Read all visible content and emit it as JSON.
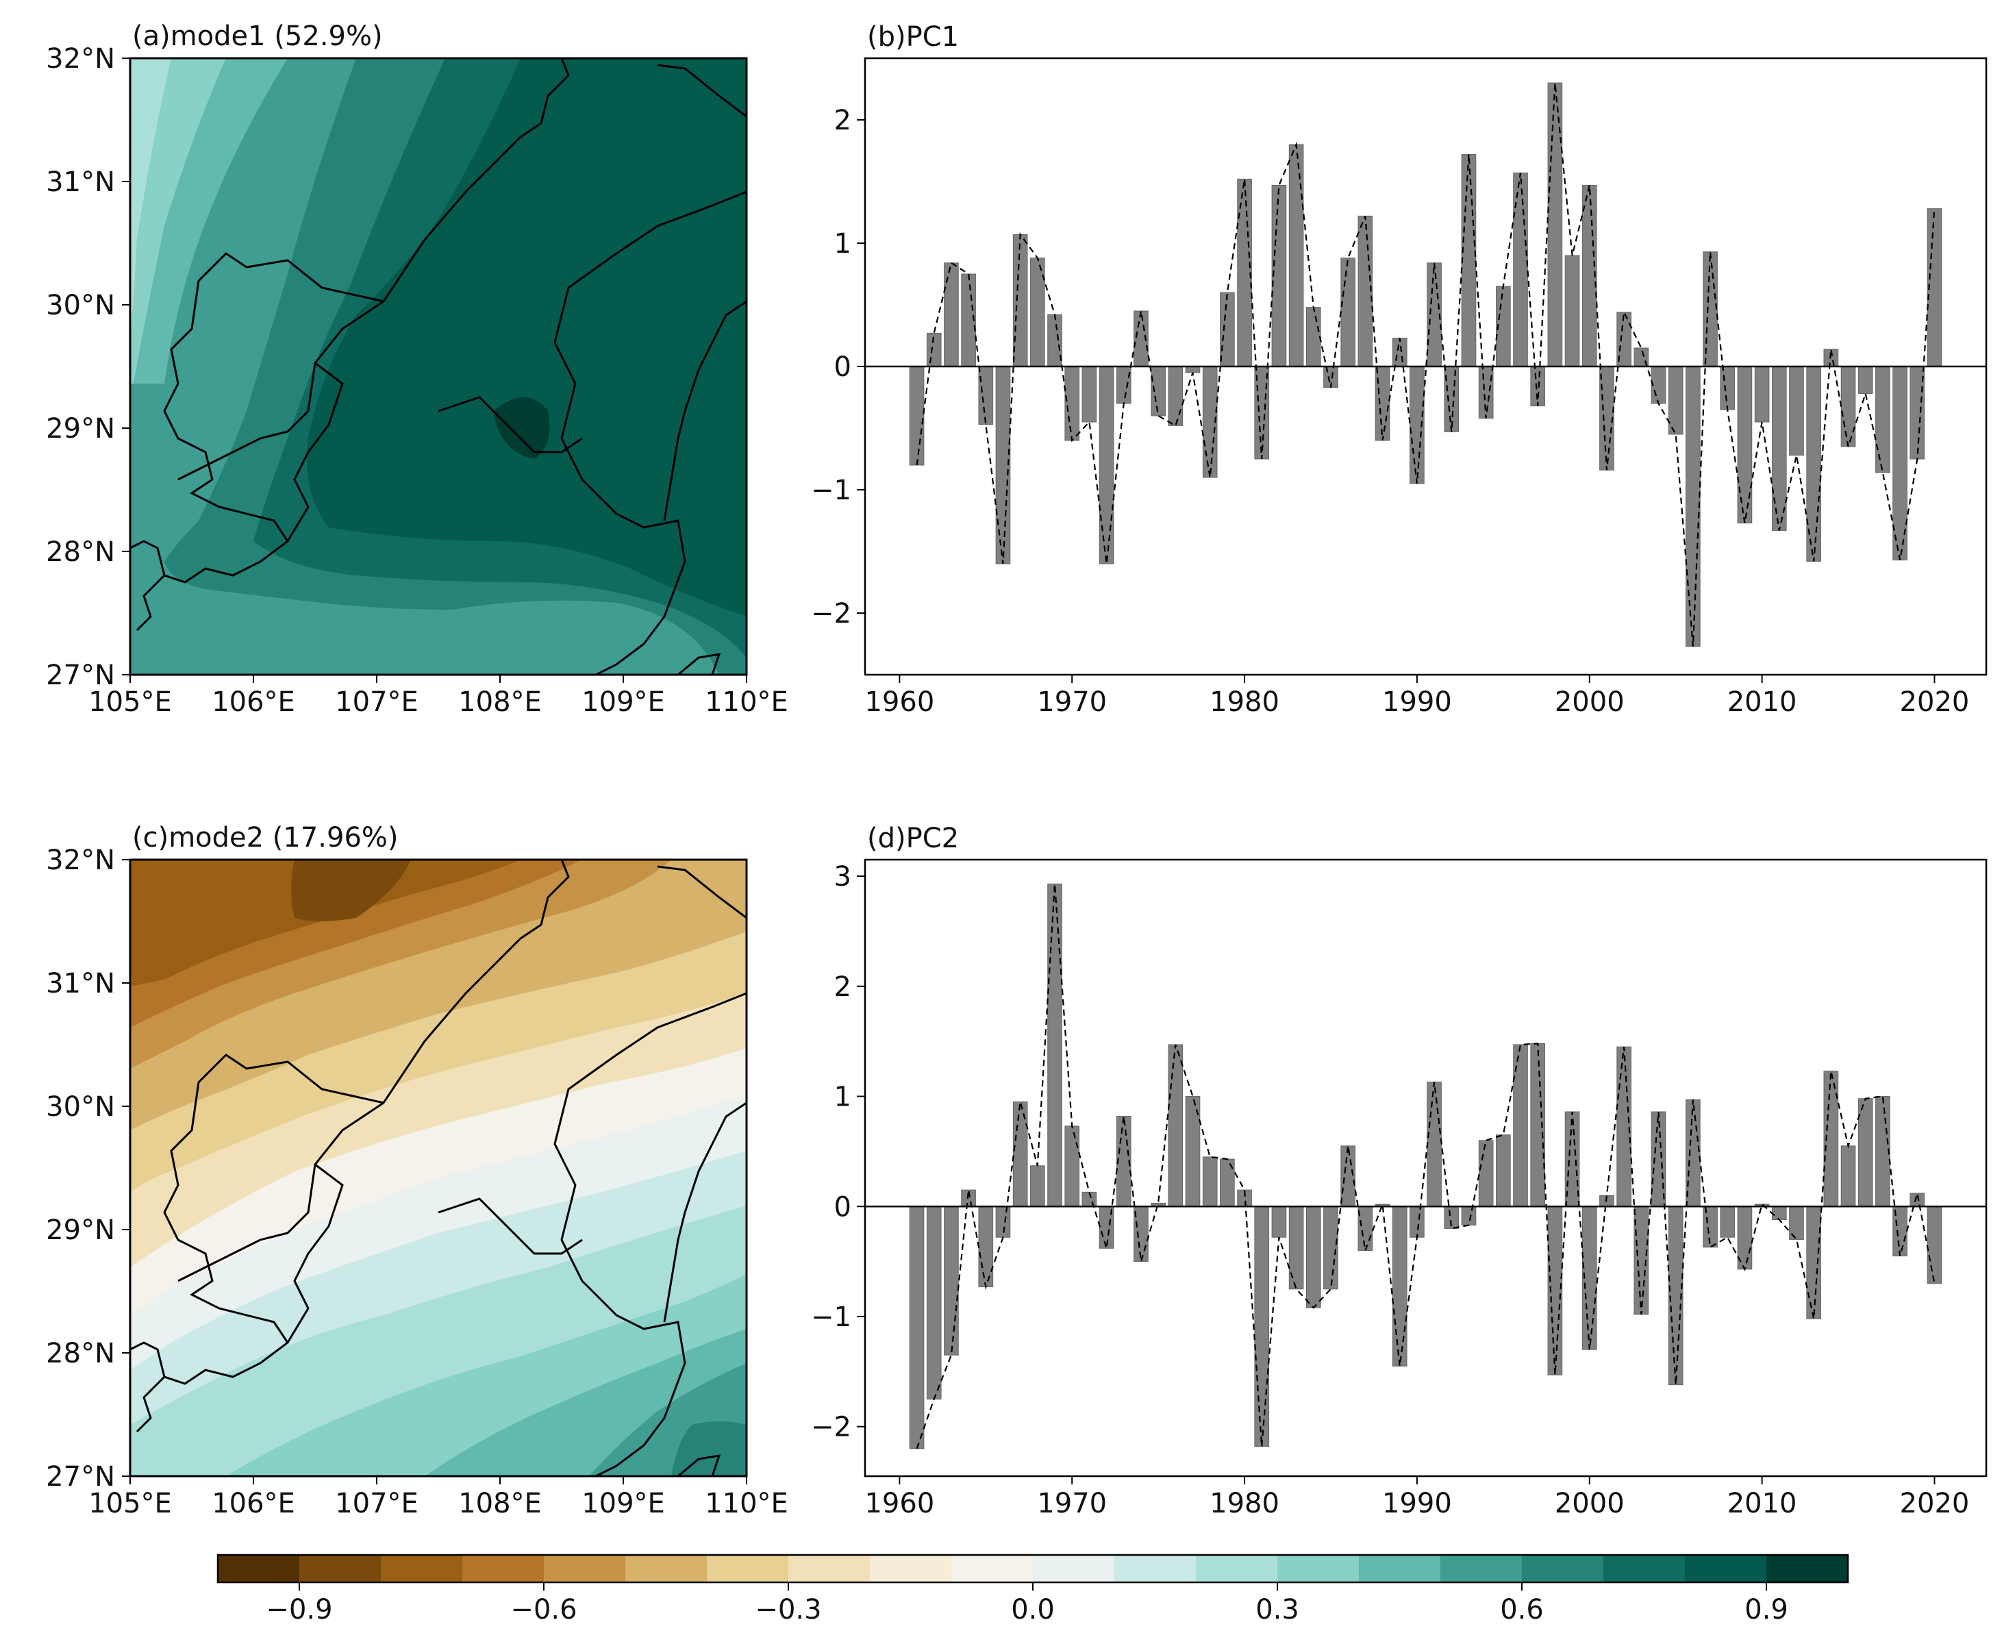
{
  "colorbar": {
    "colors": [
      "#543005",
      "#7a4a0d",
      "#995f13",
      "#b47528",
      "#c69346",
      "#d7b26b",
      "#e8cf92",
      "#f2e1b8",
      "#f6edd8",
      "#f4f2ea",
      "#e9f2f0",
      "#cbe9e6",
      "#aadfd8",
      "#87d1c7",
      "#62b9ad",
      "#3f9d92",
      "#258378",
      "#106c61",
      "#055a4e",
      "#003c30"
    ],
    "ticks": [
      -0.9,
      -0.6,
      -0.3,
      0.0,
      0.3,
      0.6,
      0.9
    ],
    "tick_labels": [
      "−0.9",
      "−0.6",
      "−0.3",
      "0.0",
      "0.3",
      "0.6",
      "0.9"
    ],
    "vmin": -1.0,
    "vmax": 1.0
  },
  "maps": {
    "lon_ticks": [
      "105°E",
      "106°E",
      "107°E",
      "108°E",
      "109°E",
      "110°E"
    ],
    "lat_ticks": [
      "32°N",
      "31°N",
      "30°N",
      "29°N",
      "28°N",
      "27°N"
    ],
    "mode1": {
      "title": "(a)mode1 (52.9%)",
      "colors": {
        "c1": "#aadfd8",
        "c2": "#87d1c7",
        "c3": "#62b9ad",
        "c4": "#3f9d92",
        "c5": "#258378",
        "c6": "#106c61",
        "c7": "#055a4e",
        "c8": "#003c30"
      }
    },
    "mode2": {
      "title": "(c)mode2 (17.96%)",
      "colors": {
        "b1": "#7a4a0d",
        "b2": "#995f13",
        "b3": "#b47528",
        "b4": "#c69346",
        "b5": "#d7b26b",
        "b6": "#e8cf92",
        "b7": "#f2e1b8",
        "b8": "#f6edd8",
        "b9": "#f4f2ea",
        "t1": "#e9f2f0",
        "t2": "#cbe9e6",
        "t3": "#aadfd8",
        "t4": "#87d1c7",
        "t5": "#62b9ad",
        "t6": "#3f9d92",
        "t7": "#258378"
      }
    }
  },
  "chart_data": [
    {
      "type": "bar",
      "title": "(b)PC1",
      "xlabel": "",
      "ylabel": "",
      "xlim": [
        1958,
        2023
      ],
      "ylim": [
        -2.5,
        2.5
      ],
      "x_ticks": [
        1960,
        1970,
        1980,
        1990,
        2000,
        2010,
        2020
      ],
      "y_ticks": [
        -2,
        -1,
        0,
        1,
        2
      ],
      "bar_color": "#808080",
      "x": [
        1961,
        1962,
        1963,
        1964,
        1965,
        1966,
        1967,
        1968,
        1969,
        1970,
        1971,
        1972,
        1973,
        1974,
        1975,
        1976,
        1977,
        1978,
        1979,
        1980,
        1981,
        1982,
        1983,
        1984,
        1985,
        1986,
        1987,
        1988,
        1989,
        1990,
        1991,
        1992,
        1993,
        1994,
        1995,
        1996,
        1997,
        1998,
        1999,
        2000,
        2001,
        2002,
        2003,
        2004,
        2005,
        2006,
        2007,
        2008,
        2009,
        2010,
        2011,
        2012,
        2013,
        2014,
        2015,
        2016,
        2017,
        2018,
        2019,
        2020
      ],
      "values": [
        -0.8,
        0.27,
        0.84,
        0.75,
        -0.47,
        -1.6,
        1.07,
        0.88,
        0.42,
        -0.6,
        -0.45,
        -1.6,
        -0.3,
        0.45,
        -0.4,
        -0.48,
        -0.05,
        -0.9,
        0.6,
        1.52,
        -0.75,
        1.47,
        1.8,
        0.48,
        -0.17,
        0.88,
        1.22,
        -0.6,
        0.23,
        -0.95,
        0.84,
        -0.53,
        1.72,
        -0.42,
        0.65,
        1.57,
        -0.32,
        2.3,
        0.9,
        1.47,
        -0.84,
        0.44,
        0.15,
        -0.3,
        -0.55,
        -2.27,
        0.93,
        -0.35,
        -1.27,
        -0.45,
        -1.33,
        -0.72,
        -1.58,
        0.14,
        -0.65,
        -0.22,
        -0.86,
        -1.57,
        -0.75,
        1.28
      ]
    },
    {
      "type": "bar",
      "title": "(d)PC2",
      "xlabel": "",
      "ylabel": "",
      "xlim": [
        1958,
        2023
      ],
      "ylim": [
        -2.45,
        3.15
      ],
      "x_ticks": [
        1960,
        1970,
        1980,
        1990,
        2000,
        2010,
        2020
      ],
      "y_ticks": [
        -2,
        -1,
        0,
        1,
        2,
        3
      ],
      "bar_color": "#808080",
      "x": [
        1961,
        1962,
        1963,
        1964,
        1965,
        1966,
        1967,
        1968,
        1969,
        1970,
        1971,
        1972,
        1973,
        1974,
        1975,
        1976,
        1977,
        1978,
        1979,
        1980,
        1981,
        1982,
        1983,
        1984,
        1985,
        1986,
        1987,
        1988,
        1989,
        1990,
        1991,
        1992,
        1993,
        1994,
        1995,
        1996,
        1997,
        1998,
        1999,
        2000,
        2001,
        2002,
        2003,
        2004,
        2005,
        2006,
        2007,
        2008,
        2009,
        2010,
        2011,
        2012,
        2013,
        2014,
        2015,
        2016,
        2017,
        2018,
        2019,
        2020
      ],
      "values": [
        -2.2,
        -1.75,
        -1.35,
        0.15,
        -0.73,
        -0.28,
        0.95,
        0.37,
        2.93,
        0.73,
        0.13,
        -0.38,
        0.82,
        -0.5,
        0.03,
        1.47,
        1.0,
        0.45,
        0.43,
        0.15,
        -2.18,
        -0.28,
        -0.75,
        -0.92,
        -0.75,
        0.55,
        -0.4,
        0.02,
        -1.45,
        -0.28,
        1.13,
        -0.2,
        -0.17,
        0.6,
        0.65,
        1.47,
        1.48,
        -1.53,
        0.86,
        -1.3,
        0.1,
        1.45,
        -0.98,
        0.86,
        -1.62,
        0.97,
        -0.37,
        -0.28,
        -0.57,
        0.02,
        -0.12,
        -0.3,
        -1.02,
        1.23,
        0.55,
        0.98,
        1.0,
        -0.45,
        0.12,
        -0.7
      ]
    }
  ]
}
